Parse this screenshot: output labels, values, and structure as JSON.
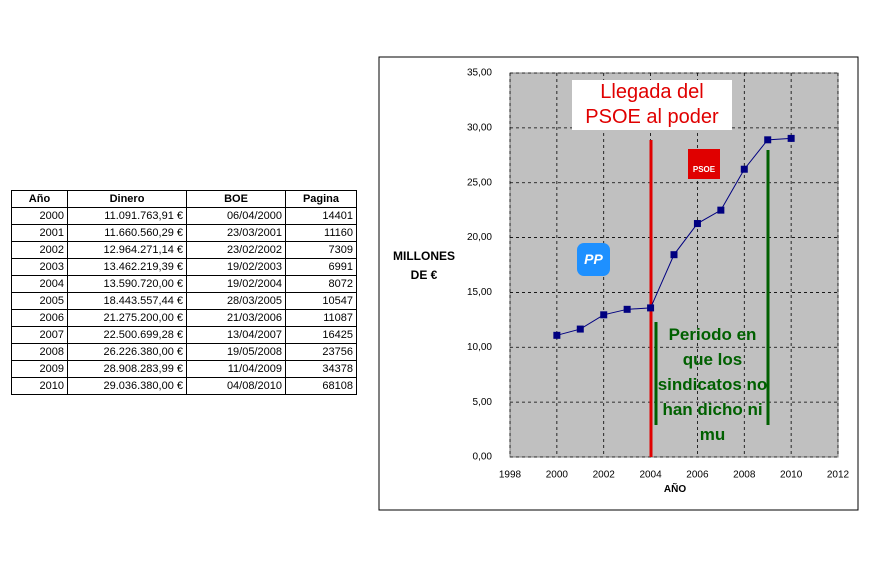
{
  "table": {
    "header": [
      "Año",
      "Dinero",
      "BOE",
      "Pagina"
    ],
    "rows": [
      [
        "2000",
        "11.091.763,91 €",
        "06/04/2000",
        "14401"
      ],
      [
        "2001",
        "11.660.560,29 €",
        "23/03/2001",
        "11160"
      ],
      [
        "2002",
        "12.964.271,14 €",
        "23/02/2002",
        "7309"
      ],
      [
        "2003",
        "13.462.219,39 €",
        "19/02/2003",
        "6991"
      ],
      [
        "2004",
        "13.590.720,00 €",
        "19/02/2004",
        "8072"
      ],
      [
        "2005",
        "18.443.557,44 €",
        "28/03/2005",
        "10547"
      ],
      [
        "2006",
        "21.275.200,00 €",
        "21/03/2006",
        "11087"
      ],
      [
        "2007",
        "22.500.699,28 €",
        "13/04/2007",
        "16425"
      ],
      [
        "2008",
        "26.226.380,00 €",
        "19/05/2008",
        "23756"
      ],
      [
        "2009",
        "28.908.283,99 €",
        "11/04/2009",
        "34378"
      ],
      [
        "2010",
        "29.036.380,00 €",
        "04/08/2010",
        "68108"
      ]
    ]
  },
  "chart_data": {
    "type": "line",
    "x": [
      2000,
      2001,
      2002,
      2003,
      2004,
      2005,
      2006,
      2007,
      2008,
      2009,
      2010
    ],
    "series": [
      {
        "color": "#000080",
        "values": [
          11.09,
          11.66,
          12.96,
          13.46,
          13.59,
          18.44,
          21.28,
          22.5,
          26.23,
          28.91,
          29.04
        ]
      }
    ],
    "xlim": [
      1998,
      2012
    ],
    "xticks": [
      1998,
      2000,
      2002,
      2004,
      2006,
      2008,
      2010,
      2012
    ],
    "ylim": [
      0,
      35
    ],
    "yticks": [
      {
        "value": 0,
        "label": "0,00"
      },
      {
        "value": 5,
        "label": "5,00"
      },
      {
        "value": 10,
        "label": "10,00"
      },
      {
        "value": 15,
        "label": "15,00"
      },
      {
        "value": 20,
        "label": "20,00"
      },
      {
        "value": 25,
        "label": "25,00"
      },
      {
        "value": 30,
        "label": "30,00"
      },
      {
        "value": 35,
        "label": "35,00"
      }
    ],
    "grid": true,
    "xlabel": "AÑO",
    "ylabel": "MILLONES DE €",
    "annotations": [
      "Llegada del PSOE al poder",
      "Periodo en que los sindicatos no han dicho ni mu"
    ],
    "logos": [
      "PP",
      "PSOE"
    ]
  }
}
